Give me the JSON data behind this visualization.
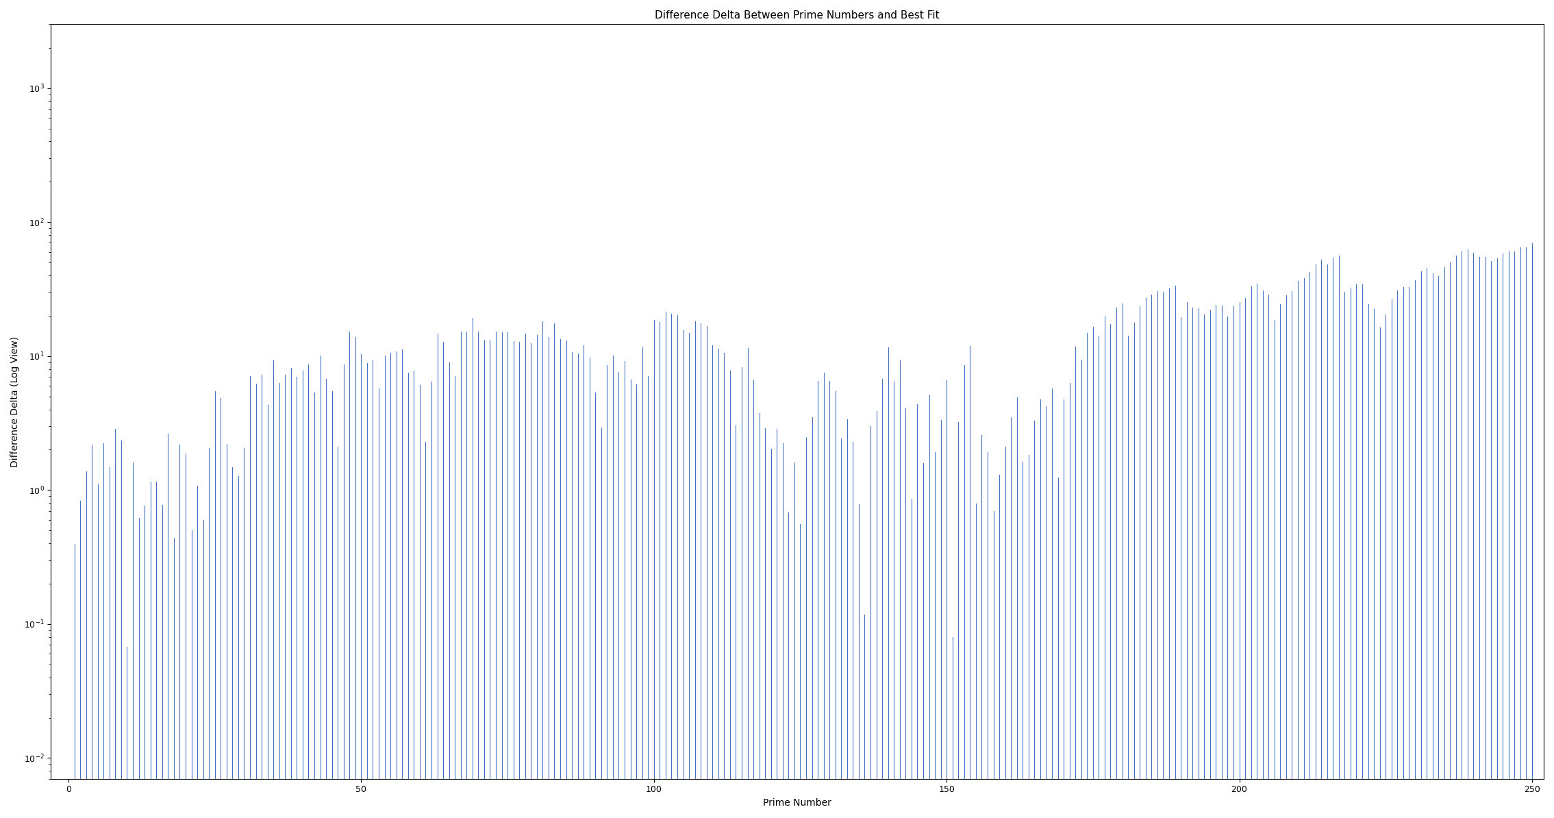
{
  "title": "Difference Delta Between Prime Numbers and Best Fit",
  "xlabel": "Prime Number",
  "ylabel": "Difference Delta (Log View)",
  "line_color": "#4472C4",
  "background_color": "#ffffff",
  "ylim_min": 0.007,
  "ylim_max": 3000,
  "xlim_min": -3,
  "xlim_max": 252,
  "figwidth": 22.69,
  "figheight": 11.94,
  "dpi": 100,
  "xticks": [
    0,
    50,
    100,
    150,
    200,
    250
  ],
  "linewidth": 0.8
}
